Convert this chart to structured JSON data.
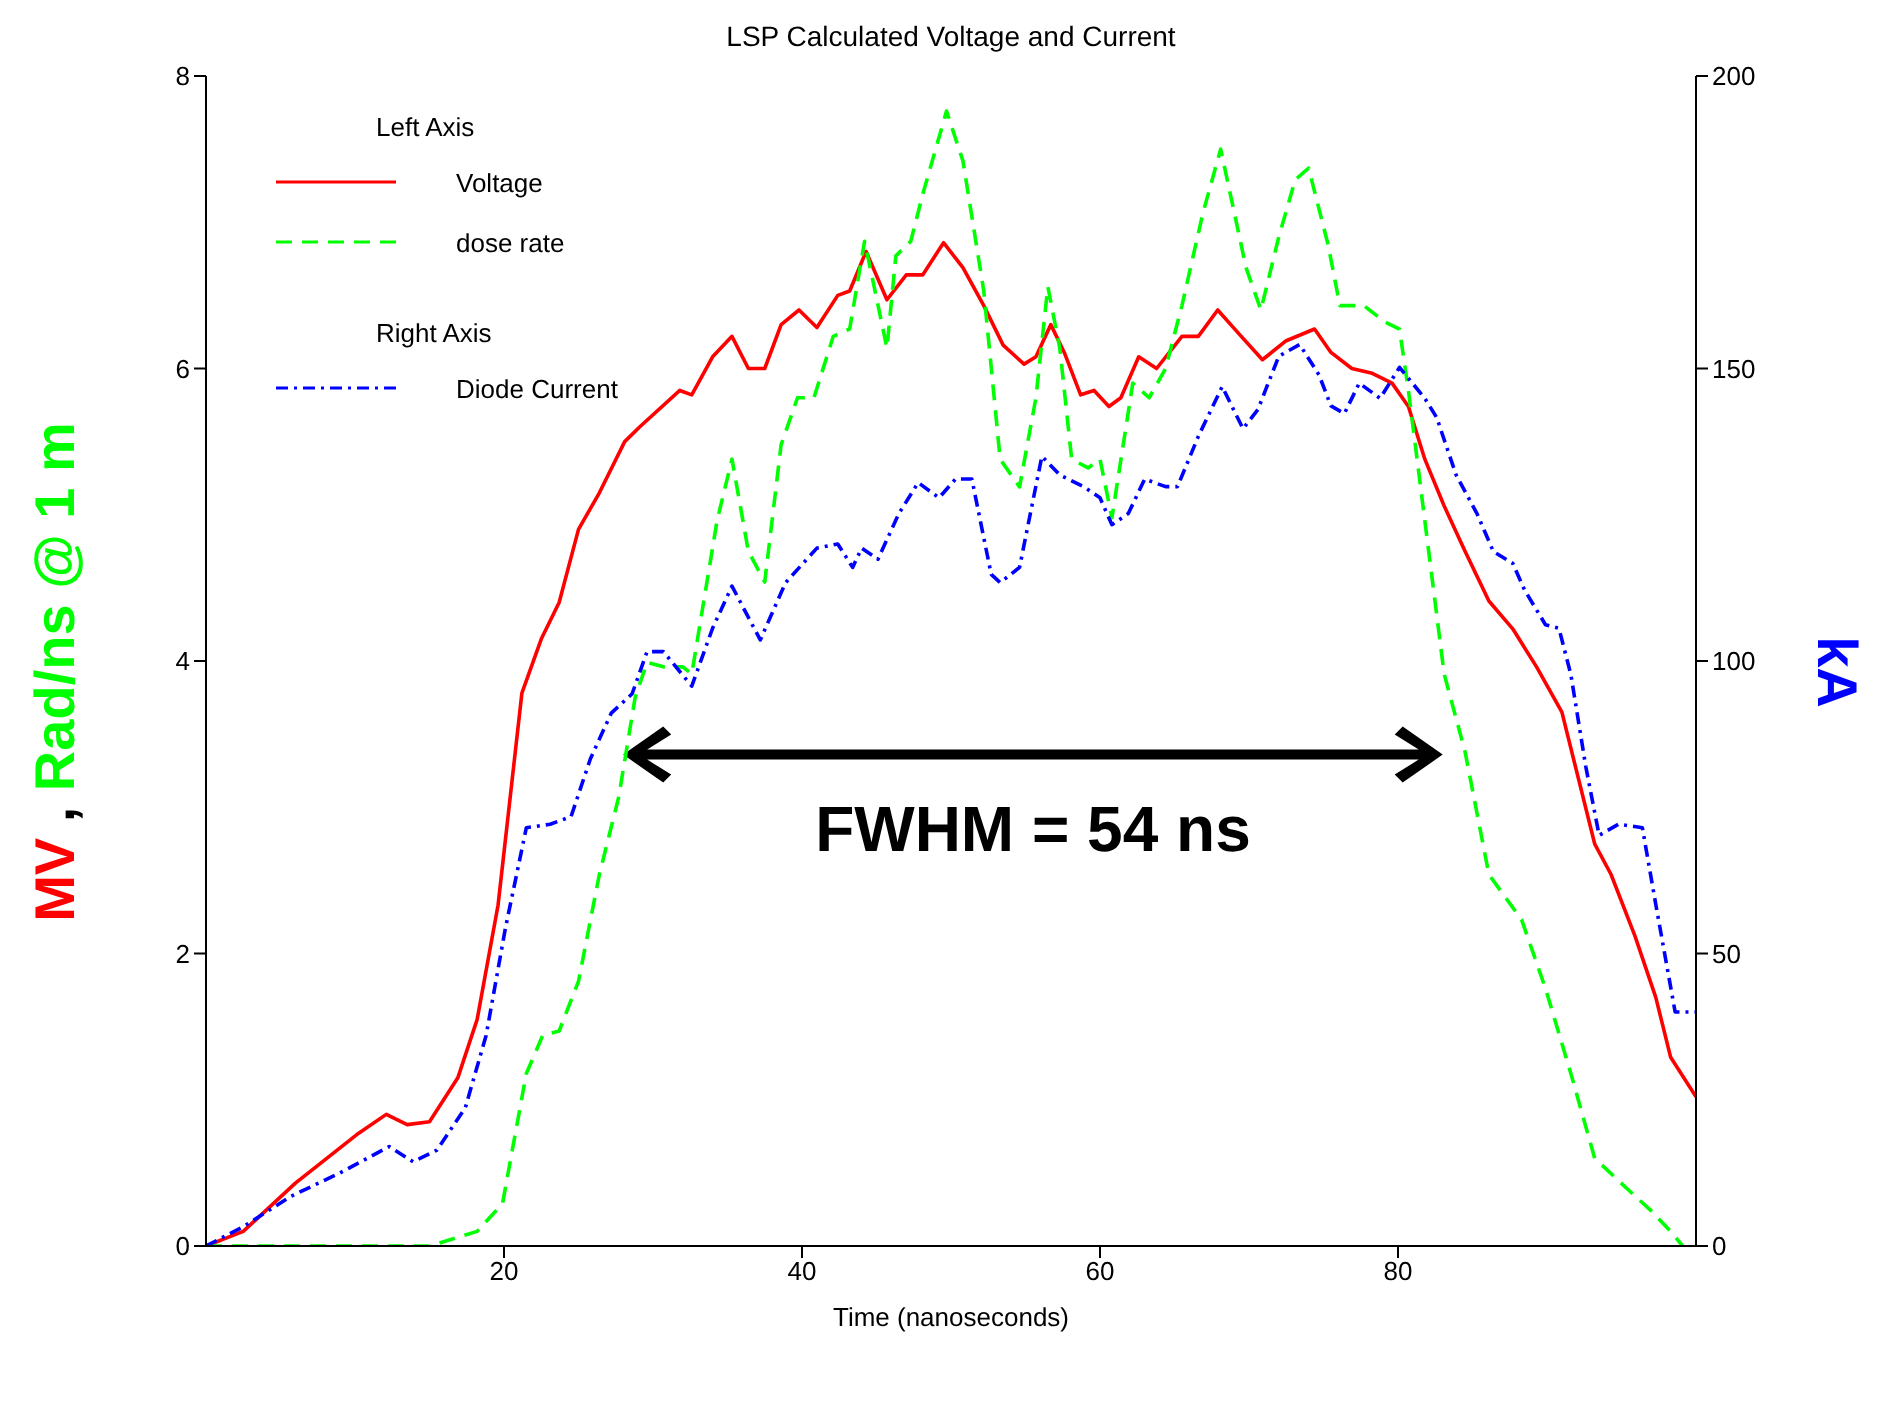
{
  "chart_data": {
    "type": "line",
    "title": "LSP Calculated Voltage and Current",
    "xlabel": "Time (nanoseconds)",
    "ylabel": "MV , Rad/ns @ 1 m",
    "y2label": "kA",
    "xlim": [
      0,
      100
    ],
    "xticks": [
      20,
      40,
      60,
      80
    ],
    "ylim": [
      0,
      8
    ],
    "yticks": [
      0,
      2,
      4,
      6,
      8
    ],
    "y2lim": [
      0,
      200
    ],
    "y2ticks": [
      0,
      50,
      100,
      150,
      200
    ],
    "grid": false,
    "legend": "top left",
    "marker": "none",
    "annotations": [
      "Left Axis",
      "Right Axis",
      "FWHM = 54 ns"
    ],
    "series": [
      {
        "name": "Voltage",
        "color": "#ff0000",
        "line_style": "solid",
        "x": [
          0,
          2.5,
          6,
          10.1,
          12.1,
          13.5,
          15,
          16.9,
          18.2,
          19.6,
          21.2,
          22.5,
          23.7,
          25,
          26.4,
          28.1,
          29.1,
          31.8,
          32.6,
          34,
          35.3,
          36.4,
          37.5,
          38.6,
          39.8,
          41,
          42.4,
          43.2,
          44.3,
          45.7,
          47,
          48.1,
          49.5,
          50.8,
          52.2,
          53.5,
          54.9,
          55.7,
          56.7,
          57.6,
          58.7,
          59.6,
          60.6,
          61.4,
          62.6,
          63.8,
          65.5,
          66.6,
          67.9,
          69.3,
          70.9,
          72.5,
          74.4,
          75.5,
          76.9,
          78.2,
          79.6,
          80.7,
          81.8,
          83.1,
          84.5,
          86.1,
          87.7,
          89.3,
          91,
          93.2,
          94.3,
          95.9,
          97.3,
          98.3,
          100
        ],
        "values": [
          0,
          0.1,
          0.43,
          0.76,
          0.9,
          0.83,
          0.85,
          1.15,
          1.55,
          2.33,
          3.78,
          4.15,
          4.4,
          4.9,
          5.15,
          5.5,
          5.6,
          5.85,
          5.82,
          6.08,
          6.22,
          6,
          6,
          6.3,
          6.4,
          6.28,
          6.5,
          6.53,
          6.8,
          6.47,
          6.64,
          6.64,
          6.86,
          6.69,
          6.43,
          6.16,
          6.03,
          6.08,
          6.3,
          6.11,
          5.82,
          5.85,
          5.74,
          5.8,
          6.08,
          6,
          6.22,
          6.22,
          6.4,
          6.24,
          6.06,
          6.19,
          6.27,
          6.11,
          6,
          5.97,
          5.9,
          5.74,
          5.38,
          5.06,
          4.75,
          4.41,
          4.22,
          3.96,
          3.65,
          2.75,
          2.54,
          2.12,
          1.7,
          1.29,
          1.02
        ]
      },
      {
        "name": "dose rate",
        "color": "#00ff00",
        "line_style": "dashed",
        "x": [
          0,
          15,
          18.2,
          19.9,
          21.5,
          22.6,
          23.7,
          25,
          26.4,
          27.7,
          28.8,
          29.6,
          30.7,
          32,
          32.6,
          34.3,
          35.3,
          36.4,
          37.5,
          38.6,
          39.7,
          40.8,
          42.1,
          43.2,
          44.2,
          44.8,
          45.7,
          46.3,
          47.3,
          48.1,
          49.7,
          50.8,
          52.2,
          53.3,
          54.6,
          55.7,
          56.5,
          57.3,
          58.1,
          59.2,
          60,
          60.8,
          62.2,
          63.3,
          64.4,
          65.5,
          66.9,
          68.1,
          69.8,
          70.8,
          72,
          73.1,
          74,
          75.3,
          76.1,
          77.7,
          79.1,
          80.1,
          80.7,
          81.8,
          83.1,
          84.5,
          86.1,
          88.3,
          89.9,
          91.6,
          93.2,
          95.4,
          97,
          98.3,
          99.1
        ],
        "values": [
          0,
          0,
          0.1,
          0.29,
          1.18,
          1.44,
          1.47,
          1.81,
          2.54,
          3.07,
          3.75,
          3.99,
          3.96,
          3.96,
          3.91,
          4.96,
          5.38,
          4.75,
          4.54,
          5.48,
          5.8,
          5.8,
          6.22,
          6.27,
          6.87,
          6.58,
          6.14,
          6.77,
          6.87,
          7.19,
          7.76,
          7.42,
          6.53,
          5.38,
          5.19,
          5.8,
          6.56,
          6.14,
          5.38,
          5.32,
          5.38,
          4.98,
          5.9,
          5.8,
          6,
          6.43,
          7.06,
          7.5,
          6.69,
          6.4,
          6.9,
          7.29,
          7.37,
          6.85,
          6.43,
          6.43,
          6.32,
          6.27,
          5.85,
          4.96,
          3.91,
          3.38,
          2.54,
          2.23,
          1.76,
          1.18,
          0.6,
          0.39,
          0.24,
          0.1,
          0
        ]
      },
      {
        "name": "Diode Current",
        "color": "#0000ff",
        "line_style": "dotted",
        "axis": "y2",
        "x": [
          0,
          2.5,
          5.7,
          9,
          12.3,
          13.9,
          15.5,
          17.4,
          18.8,
          20.1,
          21.5,
          23.1,
          24.5,
          25.8,
          27.2,
          28.6,
          29.6,
          30.7,
          32.6,
          34,
          35.3,
          37.2,
          38.9,
          41,
          42.4,
          43.4,
          44,
          45.1,
          46.5,
          47.8,
          49.2,
          50.3,
          51.4,
          52.7,
          53.3,
          54.6,
          56.1,
          57.3,
          58.9,
          60,
          60.8,
          61.9,
          63,
          64.4,
          65.2,
          66.6,
          68.2,
          69.6,
          70.6,
          72,
          73.4,
          74.7,
          75.5,
          76.4,
          77.4,
          78.8,
          80.1,
          81.8,
          82.6,
          83.9,
          85.3,
          86.4,
          87.7,
          88.5,
          89.9,
          90.8,
          91.6,
          92.6,
          93.5,
          94.8,
          96.4,
          97.3,
          98.6,
          100
        ],
        "values": [
          0,
          3.3,
          8.5,
          12.5,
          17,
          14.4,
          16.4,
          23.6,
          36,
          54.4,
          71.5,
          72.1,
          73.4,
          83.3,
          91.1,
          94.4,
          101.6,
          101.6,
          95.7,
          105.6,
          112.8,
          103.6,
          113.4,
          119.3,
          120,
          116,
          119.3,
          117.4,
          125.2,
          130.5,
          127.9,
          131.1,
          131.1,
          114.8,
          113.4,
          116,
          135,
          131.8,
          129.8,
          127.9,
          123.3,
          125.2,
          131.1,
          129.8,
          129.8,
          138.4,
          146.9,
          139.7,
          143,
          152.1,
          154.1,
          148.9,
          143.6,
          142.3,
          147.5,
          144.9,
          150.2,
          144.9,
          141.6,
          131.8,
          125.2,
          118.7,
          116.7,
          112.1,
          106.2,
          105.6,
          97.7,
          82,
          70.2,
          72.1,
          71.5,
          58.4,
          40,
          40
        ]
      }
    ]
  }
}
